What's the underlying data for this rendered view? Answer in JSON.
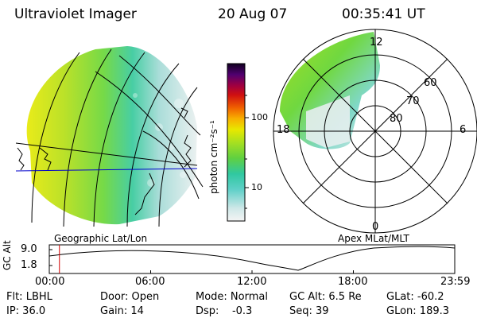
{
  "header": {
    "instrument": "Ultraviolet Imager",
    "date": "20 Aug 07",
    "time": "00:35:41  UT"
  },
  "colorbar": {
    "unit_label": "photon cm⁻²s⁻¹",
    "ticks": [
      "100",
      "10"
    ],
    "scale": "log"
  },
  "geo_panel": {
    "label": "Geographic Lat/Lon"
  },
  "polar_panel": {
    "label": "Apex  MLat/MLT",
    "mlt_labels": {
      "top": "12",
      "left": "18",
      "right": "6",
      "bottom": "0"
    },
    "lat_labels": [
      "60",
      "70",
      "80"
    ]
  },
  "altitude_strip": {
    "axis_label": "GC Alt",
    "y_ticks": [
      "9.0",
      "1.8"
    ],
    "x_ticks": [
      "00:00",
      "06:00",
      "12:00",
      "18:00",
      "23:59"
    ],
    "current_time_fraction": 0.025
  },
  "info": {
    "filter": "Flt: LBHL",
    "ip": "IP: 36.0",
    "door": "Door: Open",
    "gain": "Gain: 14",
    "mode": "Mode: Normal",
    "dsp": "Dsp:    -0.3",
    "gc_alt": "GC Alt: 6.5 Re",
    "seq": "Seq: 39",
    "glat": "GLat: -60.2",
    "glon": "GLon: 189.3"
  },
  "colors": {
    "accent_blue": "#0000cc",
    "time_marker": "#d00000"
  }
}
